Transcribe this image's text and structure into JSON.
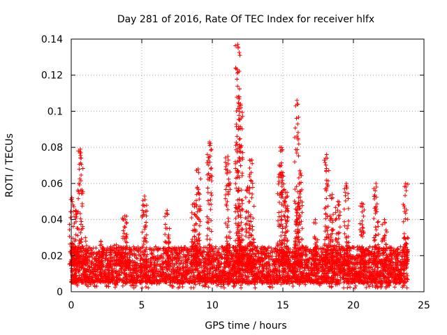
{
  "chart_data": {
    "type": "scatter",
    "title": "Day 281 of 2016, Rate Of TEC Index for receiver hlfx",
    "xlabel": "GPS time / hours",
    "ylabel": "ROTI / TECUs",
    "xlim": [
      0,
      25
    ],
    "ylim": [
      0,
      0.14
    ],
    "x_ticks": [
      0,
      5,
      10,
      15,
      20,
      25
    ],
    "x_tick_labels": [
      "0",
      "5",
      "10",
      "15",
      "20",
      "25"
    ],
    "y_ticks": [
      0,
      0.02,
      0.04,
      0.06,
      0.08,
      0.1,
      0.12,
      0.14
    ],
    "y_tick_labels": [
      "0",
      "0.02",
      "0.04",
      "0.06",
      "0.08",
      "0.1",
      "0.12",
      "0.14"
    ],
    "grid": true,
    "marker": "plus",
    "color": "#ff0000",
    "data_range_x": [
      0,
      23.85
    ],
    "baseline": {
      "min": 0.005,
      "max": 0.025
    },
    "spikes": [
      {
        "x": 0.05,
        "peak": 0.052
      },
      {
        "x": 0.3,
        "peak": 0.045
      },
      {
        "x": 0.65,
        "peak": 0.079
      },
      {
        "x": 1.0,
        "peak": 0.03
      },
      {
        "x": 2.1,
        "peak": 0.028
      },
      {
        "x": 3.2,
        "peak": 0.026
      },
      {
        "x": 3.8,
        "peak": 0.042
      },
      {
        "x": 5.2,
        "peak": 0.053
      },
      {
        "x": 6.8,
        "peak": 0.045
      },
      {
        "x": 8.7,
        "peak": 0.049
      },
      {
        "x": 9.0,
        "peak": 0.068
      },
      {
        "x": 9.8,
        "peak": 0.083
      },
      {
        "x": 11.1,
        "peak": 0.075
      },
      {
        "x": 11.8,
        "peak": 0.137
      },
      {
        "x": 12.0,
        "peak": 0.104
      },
      {
        "x": 12.5,
        "peak": 0.058
      },
      {
        "x": 12.8,
        "peak": 0.073
      },
      {
        "x": 14.8,
        "peak": 0.08
      },
      {
        "x": 15.0,
        "peak": 0.066
      },
      {
        "x": 15.3,
        "peak": 0.055
      },
      {
        "x": 16.0,
        "peak": 0.106
      },
      {
        "x": 16.2,
        "peak": 0.067
      },
      {
        "x": 17.3,
        "peak": 0.04
      },
      {
        "x": 18.1,
        "peak": 0.076
      },
      {
        "x": 18.5,
        "peak": 0.054
      },
      {
        "x": 18.9,
        "peak": 0.05
      },
      {
        "x": 19.5,
        "peak": 0.06
      },
      {
        "x": 20.6,
        "peak": 0.049
      },
      {
        "x": 21.6,
        "peak": 0.06
      },
      {
        "x": 22.2,
        "peak": 0.04
      },
      {
        "x": 23.7,
        "peak": 0.06
      }
    ]
  }
}
